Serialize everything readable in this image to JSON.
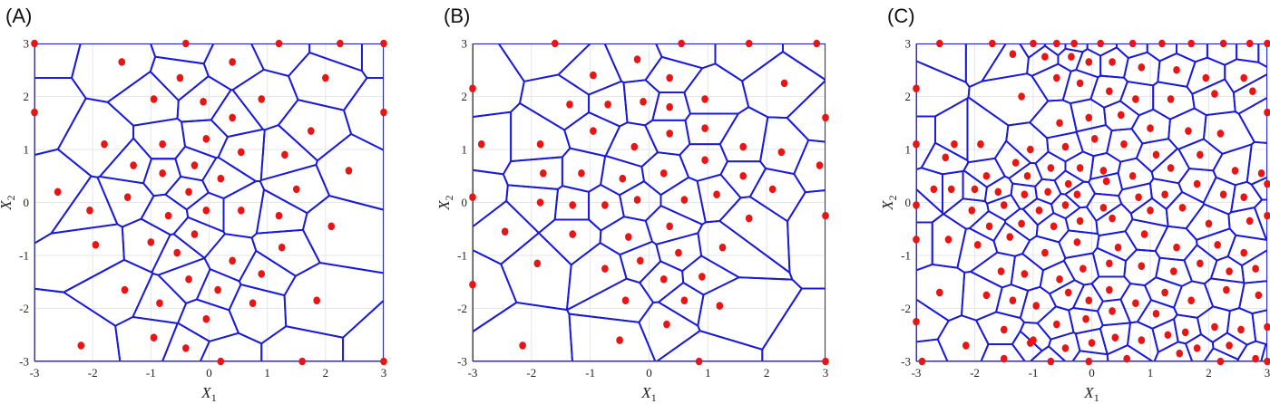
{
  "figure": {
    "panels": [
      "(A)",
      "(B)",
      "(C)"
    ],
    "colors": {
      "edges": "#1a1adb",
      "points": "#e81515",
      "grid": "#e6e6e6",
      "axis": "#444444"
    }
  },
  "chart_data": [
    {
      "type": "scatter",
      "panel_label": "(A)",
      "xlabel_main": "X",
      "xlabel_sub": "1",
      "ylabel_main": "X",
      "ylabel_sub": "2",
      "xlim": [
        -3,
        3
      ],
      "ylim": [
        -3,
        3
      ],
      "xticks": [
        -3,
        -2,
        -1,
        0,
        1,
        2,
        3
      ],
      "yticks": [
        -3,
        -2,
        -1,
        0,
        1,
        2,
        3
      ],
      "grid": true,
      "overlay": "voronoi",
      "points": [
        [
          -3.0,
          3.0
        ],
        [
          -0.4,
          3.0
        ],
        [
          1.2,
          3.0
        ],
        [
          2.25,
          3.0
        ],
        [
          3.0,
          3.0
        ],
        [
          -3.0,
          1.7
        ],
        [
          -1.5,
          2.65
        ],
        [
          -0.5,
          2.35
        ],
        [
          0.4,
          2.65
        ],
        [
          2.0,
          2.35
        ],
        [
          -0.95,
          1.95
        ],
        [
          -0.1,
          1.9
        ],
        [
          0.9,
          1.95
        ],
        [
          0.4,
          1.6
        ],
        [
          3.0,
          1.7
        ],
        [
          -1.8,
          1.1
        ],
        [
          -0.8,
          1.1
        ],
        [
          -0.05,
          1.2
        ],
        [
          0.55,
          0.95
        ],
        [
          1.3,
          0.9
        ],
        [
          1.75,
          1.35
        ],
        [
          -1.3,
          0.7
        ],
        [
          -0.8,
          0.55
        ],
        [
          -0.25,
          0.7
        ],
        [
          0.2,
          0.45
        ],
        [
          2.4,
          0.6
        ],
        [
          -2.6,
          0.2
        ],
        [
          -1.4,
          0.1
        ],
        [
          -0.35,
          0.2
        ],
        [
          1.5,
          0.25
        ],
        [
          -2.05,
          -0.15
        ],
        [
          -0.05,
          -0.15
        ],
        [
          0.55,
          -0.15
        ],
        [
          1.2,
          -0.25
        ],
        [
          -0.7,
          -0.25
        ],
        [
          2.1,
          -0.45
        ],
        [
          -1.95,
          -0.8
        ],
        [
          -0.25,
          -0.6
        ],
        [
          -1.0,
          -0.75
        ],
        [
          -0.55,
          -0.95
        ],
        [
          1.25,
          -0.85
        ],
        [
          0.4,
          -1.1
        ],
        [
          -1.45,
          -1.65
        ],
        [
          -0.85,
          -1.9
        ],
        [
          -0.35,
          -1.45
        ],
        [
          0.15,
          -1.65
        ],
        [
          0.9,
          -1.35
        ],
        [
          0.75,
          -1.9
        ],
        [
          1.85,
          -1.85
        ],
        [
          -0.05,
          -2.2
        ],
        [
          -0.95,
          -2.55
        ],
        [
          -2.2,
          -2.7
        ],
        [
          -0.4,
          -2.75
        ],
        [
          0.2,
          -3.0
        ],
        [
          1.6,
          -3.0
        ],
        [
          3.0,
          -3.0
        ]
      ]
    },
    {
      "type": "scatter",
      "panel_label": "(B)",
      "xlabel_main": "X",
      "xlabel_sub": "1",
      "ylabel_main": "X",
      "ylabel_sub": "2",
      "xlim": [
        -3,
        3
      ],
      "ylim": [
        -3,
        3
      ],
      "xticks": [
        -3,
        -2,
        -1,
        0,
        1,
        2,
        3
      ],
      "yticks": [
        -3,
        -2,
        -1,
        0,
        1,
        2,
        3
      ],
      "grid": true,
      "overlay": "voronoi",
      "points": [
        [
          -1.6,
          3.0
        ],
        [
          0.55,
          3.0
        ],
        [
          1.7,
          3.0
        ],
        [
          2.85,
          3.0
        ],
        [
          -3.0,
          2.15
        ],
        [
          -0.95,
          2.4
        ],
        [
          -0.2,
          2.7
        ],
        [
          0.35,
          2.35
        ],
        [
          2.3,
          2.25
        ],
        [
          -1.35,
          1.85
        ],
        [
          -0.7,
          1.85
        ],
        [
          -0.1,
          1.9
        ],
        [
          0.35,
          1.8
        ],
        [
          0.95,
          1.95
        ],
        [
          3.0,
          1.6
        ],
        [
          -2.85,
          1.1
        ],
        [
          -1.85,
          1.1
        ],
        [
          -0.95,
          1.35
        ],
        [
          0.35,
          1.3
        ],
        [
          0.95,
          1.4
        ],
        [
          -0.25,
          1.05
        ],
        [
          1.6,
          1.05
        ],
        [
          2.25,
          0.95
        ],
        [
          -1.8,
          0.55
        ],
        [
          -1.15,
          0.55
        ],
        [
          -0.45,
          0.45
        ],
        [
          0.25,
          0.55
        ],
        [
          0.95,
          0.8
        ],
        [
          1.6,
          0.5
        ],
        [
          2.9,
          0.7
        ],
        [
          -3.0,
          0.1
        ],
        [
          -1.85,
          0.0
        ],
        [
          -1.3,
          -0.05
        ],
        [
          -0.75,
          -0.05
        ],
        [
          -0.2,
          0.05
        ],
        [
          0.6,
          0.05
        ],
        [
          1.15,
          0.15
        ],
        [
          2.1,
          0.25
        ],
        [
          -2.45,
          -0.55
        ],
        [
          -1.3,
          -0.6
        ],
        [
          -0.35,
          -0.65
        ],
        [
          0.35,
          -0.45
        ],
        [
          1.7,
          -0.3
        ],
        [
          3.0,
          -0.25
        ],
        [
          -1.9,
          -1.15
        ],
        [
          -0.75,
          -1.25
        ],
        [
          -0.15,
          -1.1
        ],
        [
          0.5,
          -0.95
        ],
        [
          1.25,
          -0.85
        ],
        [
          -3.0,
          -1.55
        ],
        [
          -0.4,
          -1.85
        ],
        [
          0.25,
          -1.45
        ],
        [
          0.9,
          -1.4
        ],
        [
          0.6,
          -1.85
        ],
        [
          1.2,
          -1.95
        ],
        [
          -0.5,
          -2.6
        ],
        [
          0.3,
          -2.3
        ],
        [
          -2.15,
          -2.7
        ],
        [
          0.85,
          -3.0
        ],
        [
          3.0,
          -3.0
        ]
      ]
    },
    {
      "type": "scatter",
      "panel_label": "(C)",
      "xlabel_main": "X",
      "xlabel_sub": "1",
      "ylabel_main": "X",
      "ylabel_sub": "2",
      "xlim": [
        -3,
        3
      ],
      "ylim": [
        -3,
        3
      ],
      "xticks": [
        -3,
        -2,
        -1,
        0,
        1,
        2,
        3
      ],
      "yticks": [
        -3,
        -2,
        -1,
        0,
        1,
        2,
        3
      ],
      "grid": true,
      "overlay": "voronoi",
      "points": [
        [
          -2.6,
          3.0
        ],
        [
          -1.7,
          3.0
        ],
        [
          -1.0,
          3.0
        ],
        [
          -0.6,
          3.0
        ],
        [
          -0.3,
          3.0
        ],
        [
          0.15,
          3.0
        ],
        [
          0.7,
          3.0
        ],
        [
          1.2,
          3.0
        ],
        [
          1.7,
          3.0
        ],
        [
          2.25,
          3.0
        ],
        [
          2.7,
          3.0
        ],
        [
          3.0,
          3.0
        ],
        [
          -1.35,
          2.8
        ],
        [
          -0.8,
          2.75
        ],
        [
          -0.35,
          2.75
        ],
        [
          -0.05,
          2.65
        ],
        [
          0.35,
          2.65
        ],
        [
          0.85,
          2.55
        ],
        [
          1.45,
          2.5
        ],
        [
          1.95,
          2.35
        ],
        [
          2.6,
          2.35
        ],
        [
          -3.0,
          2.15
        ],
        [
          -1.2,
          2.0
        ],
        [
          -0.6,
          2.35
        ],
        [
          -0.2,
          2.25
        ],
        [
          0.3,
          2.1
        ],
        [
          0.75,
          1.95
        ],
        [
          1.35,
          1.95
        ],
        [
          2.1,
          2.05
        ],
        [
          2.75,
          2.1
        ],
        [
          3.0,
          1.7
        ],
        [
          -0.55,
          1.5
        ],
        [
          -0.05,
          1.6
        ],
        [
          0.5,
          1.65
        ],
        [
          1.0,
          1.4
        ],
        [
          1.65,
          1.35
        ],
        [
          2.2,
          1.3
        ],
        [
          -2.35,
          1.1
        ],
        [
          -1.9,
          1.1
        ],
        [
          -1.05,
          1.0
        ],
        [
          -0.45,
          1.05
        ],
        [
          0.05,
          1.2
        ],
        [
          0.55,
          1.1
        ],
        [
          1.1,
          0.9
        ],
        [
          1.85,
          0.9
        ],
        [
          -3.0,
          1.1
        ],
        [
          -2.5,
          0.85
        ],
        [
          -1.3,
          0.75
        ],
        [
          -0.7,
          0.65
        ],
        [
          -0.2,
          0.65
        ],
        [
          0.2,
          0.6
        ],
        [
          0.7,
          0.5
        ],
        [
          1.35,
          0.65
        ],
        [
          2.45,
          0.6
        ],
        [
          2.9,
          0.55
        ],
        [
          -1.8,
          0.5
        ],
        [
          -1.1,
          0.5
        ],
        [
          -2.4,
          0.25
        ],
        [
          -2.0,
          0.25
        ],
        [
          -1.6,
          0.2
        ],
        [
          -1.15,
          0.15
        ],
        [
          -0.75,
          0.2
        ],
        [
          -0.25,
          0.15
        ],
        [
          0.25,
          0.4
        ],
        [
          -0.4,
          0.35
        ],
        [
          0.8,
          0.1
        ],
        [
          1.25,
          0.15
        ],
        [
          1.8,
          0.35
        ],
        [
          2.25,
          0.15
        ],
        [
          3.0,
          0.35
        ],
        [
          -2.7,
          0.25
        ],
        [
          -1.5,
          -0.05
        ],
        [
          -0.9,
          -0.15
        ],
        [
          -0.45,
          -0.05
        ],
        [
          0.2,
          -0.1
        ],
        [
          1.55,
          -0.1
        ],
        [
          2.6,
          0.1
        ],
        [
          -3.0,
          -0.05
        ],
        [
          -2.05,
          -0.15
        ],
        [
          -1.75,
          -0.45
        ],
        [
          -1.2,
          -0.4
        ],
        [
          -0.65,
          -0.45
        ],
        [
          -0.2,
          -0.35
        ],
        [
          0.35,
          -0.3
        ],
        [
          1.0,
          -0.15
        ],
        [
          2.0,
          -0.4
        ],
        [
          2.7,
          -0.35
        ],
        [
          3.0,
          -0.25
        ],
        [
          -3.0,
          -0.7
        ],
        [
          -2.45,
          -0.7
        ],
        [
          -1.95,
          -0.8
        ],
        [
          -1.4,
          -0.65
        ],
        [
          -0.8,
          -0.95
        ],
        [
          -0.25,
          -0.75
        ],
        [
          0.45,
          -0.85
        ],
        [
          0.9,
          -0.6
        ],
        [
          1.45,
          -0.85
        ],
        [
          2.15,
          -0.8
        ],
        [
          2.6,
          -0.95
        ],
        [
          -1.55,
          -1.3
        ],
        [
          -1.15,
          -1.35
        ],
        [
          -0.55,
          -1.45
        ],
        [
          -0.15,
          -1.25
        ],
        [
          0.3,
          -1.15
        ],
        [
          0.85,
          -1.2
        ],
        [
          1.4,
          -1.3
        ],
        [
          1.85,
          -1.15
        ],
        [
          2.35,
          -1.3
        ],
        [
          2.8,
          -1.25
        ],
        [
          -2.6,
          -1.7
        ],
        [
          -1.8,
          -1.75
        ],
        [
          -1.35,
          -1.85
        ],
        [
          -0.95,
          -1.95
        ],
        [
          -0.4,
          -1.7
        ],
        [
          -0.05,
          -1.85
        ],
        [
          0.3,
          -1.65
        ],
        [
          0.75,
          -1.9
        ],
        [
          1.25,
          -1.7
        ],
        [
          1.7,
          -1.85
        ],
        [
          2.3,
          -1.65
        ],
        [
          2.85,
          -1.75
        ],
        [
          -3.0,
          -2.25
        ],
        [
          -1.5,
          -2.4
        ],
        [
          -1.0,
          -2.6
        ],
        [
          -0.6,
          -2.3
        ],
        [
          -0.1,
          -2.2
        ],
        [
          0.35,
          -2.05
        ],
        [
          1.1,
          -2.1
        ],
        [
          1.6,
          -2.45
        ],
        [
          2.1,
          -2.35
        ],
        [
          2.55,
          -2.4
        ],
        [
          3.0,
          -2.35
        ],
        [
          -2.15,
          -2.7
        ],
        [
          -1.05,
          -2.65
        ],
        [
          -0.45,
          -2.75
        ],
        [
          0.0,
          -2.65
        ],
        [
          0.4,
          -2.55
        ],
        [
          0.85,
          -2.6
        ],
        [
          1.3,
          -2.5
        ],
        [
          1.8,
          -2.75
        ],
        [
          2.35,
          -2.7
        ],
        [
          -0.05,
          -3.0
        ],
        [
          1.5,
          -2.85
        ],
        [
          2.2,
          -3.0
        ],
        [
          3.0,
          -3.0
        ],
        [
          -2.9,
          -3.0
        ],
        [
          -1.5,
          -2.95
        ],
        [
          -0.7,
          -3.0
        ],
        [
          0.6,
          -2.95
        ],
        [
          2.8,
          -2.95
        ]
      ]
    }
  ]
}
